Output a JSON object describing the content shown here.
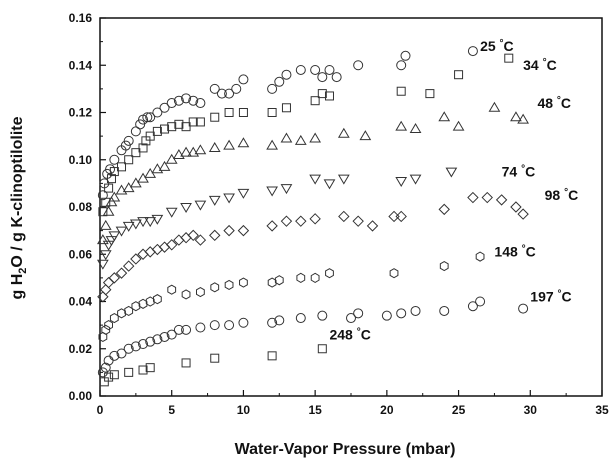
{
  "chart_data": {
    "type": "scatter",
    "title": "",
    "xlabel": "Water-Vapor Pressure (mbar)",
    "ylabel_parts": {
      "pre": "g H",
      "sub": "2",
      "post": "O / g K-clinoptilolite"
    },
    "xlim": [
      0,
      35
    ],
    "ylim": [
      0,
      0.16
    ],
    "x_ticks": [
      0,
      5,
      10,
      15,
      20,
      25,
      30,
      35
    ],
    "y_ticks": [
      "0.00",
      "0.02",
      "0.04",
      "0.06",
      "0.08",
      "0.10",
      "0.12",
      "0.14",
      "0.16"
    ],
    "grid": false,
    "series": [
      {
        "name": "25 °C",
        "marker": "circle",
        "label": {
          "text": "25 °C",
          "x": 26.5,
          "y": 0.146
        },
        "points": [
          [
            0.2,
            0.085
          ],
          [
            0.3,
            0.09
          ],
          [
            0.5,
            0.094
          ],
          [
            0.7,
            0.096
          ],
          [
            1,
            0.1
          ],
          [
            1.5,
            0.104
          ],
          [
            1.8,
            0.106
          ],
          [
            2,
            0.108
          ],
          [
            2.5,
            0.112
          ],
          [
            2.8,
            0.115
          ],
          [
            3,
            0.117
          ],
          [
            3.3,
            0.118
          ],
          [
            3.5,
            0.118
          ],
          [
            4,
            0.12
          ],
          [
            4.5,
            0.122
          ],
          [
            5,
            0.124
          ],
          [
            5.5,
            0.125
          ],
          [
            6,
            0.126
          ],
          [
            6.5,
            0.125
          ],
          [
            7,
            0.124
          ],
          [
            8,
            0.13
          ],
          [
            8.5,
            0.128
          ],
          [
            9,
            0.128
          ],
          [
            9.5,
            0.13
          ],
          [
            10,
            0.134
          ],
          [
            12,
            0.13
          ],
          [
            12.5,
            0.133
          ],
          [
            13,
            0.136
          ],
          [
            14,
            0.138
          ],
          [
            15,
            0.138
          ],
          [
            15.5,
            0.135
          ],
          [
            16,
            0.138
          ],
          [
            16.5,
            0.135
          ],
          [
            18,
            0.14
          ],
          [
            21,
            0.14
          ],
          [
            21.3,
            0.144
          ],
          [
            26,
            0.146
          ]
        ]
      },
      {
        "name": "34 °C",
        "marker": "square",
        "label": {
          "text": "34 °C",
          "x": 29.5,
          "y": 0.138
        },
        "points": [
          [
            0.2,
            0.078
          ],
          [
            0.4,
            0.082
          ],
          [
            0.6,
            0.088
          ],
          [
            0.8,
            0.092
          ],
          [
            1,
            0.095
          ],
          [
            1.5,
            0.097
          ],
          [
            2,
            0.1
          ],
          [
            2.5,
            0.103
          ],
          [
            3,
            0.105
          ],
          [
            3.2,
            0.108
          ],
          [
            3.5,
            0.11
          ],
          [
            4,
            0.112
          ],
          [
            4.5,
            0.113
          ],
          [
            5,
            0.114
          ],
          [
            5.5,
            0.115
          ],
          [
            6,
            0.114
          ],
          [
            6.5,
            0.116
          ],
          [
            7,
            0.116
          ],
          [
            8,
            0.118
          ],
          [
            9,
            0.12
          ],
          [
            10,
            0.12
          ],
          [
            12,
            0.12
          ],
          [
            13,
            0.122
          ],
          [
            15,
            0.125
          ],
          [
            15.5,
            0.128
          ],
          [
            16,
            0.127
          ],
          [
            21,
            0.129
          ],
          [
            23,
            0.128
          ],
          [
            25,
            0.136
          ],
          [
            28.5,
            0.143
          ]
        ]
      },
      {
        "name": "48 °C",
        "marker": "triangle-up",
        "label": {
          "text": "48 °C",
          "x": 30.5,
          "y": 0.122
        },
        "points": [
          [
            0.2,
            0.066
          ],
          [
            0.4,
            0.072
          ],
          [
            0.6,
            0.078
          ],
          [
            0.8,
            0.082
          ],
          [
            1,
            0.084
          ],
          [
            1.5,
            0.087
          ],
          [
            2,
            0.088
          ],
          [
            2.5,
            0.09
          ],
          [
            3,
            0.092
          ],
          [
            3.5,
            0.094
          ],
          [
            4,
            0.096
          ],
          [
            4.5,
            0.097
          ],
          [
            5,
            0.1
          ],
          [
            5.5,
            0.102
          ],
          [
            6,
            0.103
          ],
          [
            6.5,
            0.103
          ],
          [
            7,
            0.104
          ],
          [
            8,
            0.105
          ],
          [
            9,
            0.106
          ],
          [
            10,
            0.107
          ],
          [
            12,
            0.106
          ],
          [
            13,
            0.109
          ],
          [
            14,
            0.108
          ],
          [
            15,
            0.109
          ],
          [
            17,
            0.111
          ],
          [
            18.5,
            0.11
          ],
          [
            21,
            0.114
          ],
          [
            22,
            0.113
          ],
          [
            24,
            0.118
          ],
          [
            25,
            0.114
          ],
          [
            27.5,
            0.122
          ],
          [
            29,
            0.118
          ],
          [
            29.5,
            0.117
          ]
        ]
      },
      {
        "name": "74 °C",
        "marker": "triangle-down",
        "label": {
          "text": "74 °C",
          "x": 28,
          "y": 0.093
        },
        "points": [
          [
            0.2,
            0.056
          ],
          [
            0.4,
            0.06
          ],
          [
            0.6,
            0.064
          ],
          [
            0.8,
            0.066
          ],
          [
            1,
            0.068
          ],
          [
            1.5,
            0.07
          ],
          [
            2,
            0.072
          ],
          [
            2.5,
            0.073
          ],
          [
            3,
            0.074
          ],
          [
            3.5,
            0.074
          ],
          [
            4,
            0.075
          ],
          [
            5,
            0.078
          ],
          [
            6,
            0.08
          ],
          [
            7,
            0.081
          ],
          [
            8,
            0.083
          ],
          [
            9,
            0.084
          ],
          [
            10,
            0.086
          ],
          [
            12,
            0.087
          ],
          [
            13,
            0.088
          ],
          [
            15,
            0.092
          ],
          [
            16,
            0.09
          ],
          [
            17,
            0.092
          ],
          [
            21,
            0.091
          ],
          [
            22,
            0.092
          ],
          [
            24.5,
            0.095
          ]
        ]
      },
      {
        "name": "98 °C",
        "marker": "diamond",
        "label": {
          "text": "98 °C",
          "x": 31,
          "y": 0.083
        },
        "points": [
          [
            0.2,
            0.042
          ],
          [
            0.4,
            0.045
          ],
          [
            0.6,
            0.048
          ],
          [
            1,
            0.05
          ],
          [
            1.5,
            0.052
          ],
          [
            2,
            0.055
          ],
          [
            2.5,
            0.058
          ],
          [
            3,
            0.06
          ],
          [
            3.5,
            0.061
          ],
          [
            4,
            0.062
          ],
          [
            4.5,
            0.063
          ],
          [
            5,
            0.064
          ],
          [
            5.5,
            0.066
          ],
          [
            6,
            0.067
          ],
          [
            6.5,
            0.068
          ],
          [
            7,
            0.066
          ],
          [
            8,
            0.068
          ],
          [
            9,
            0.07
          ],
          [
            10,
            0.07
          ],
          [
            12,
            0.072
          ],
          [
            13,
            0.074
          ],
          [
            14,
            0.074
          ],
          [
            15,
            0.075
          ],
          [
            17,
            0.076
          ],
          [
            18,
            0.074
          ],
          [
            19,
            0.072
          ],
          [
            20.5,
            0.076
          ],
          [
            21,
            0.076
          ],
          [
            24,
            0.079
          ],
          [
            26,
            0.084
          ],
          [
            27,
            0.084
          ],
          [
            28,
            0.083
          ],
          [
            29,
            0.08
          ],
          [
            29.5,
            0.077
          ]
        ]
      },
      {
        "name": "148 °C",
        "marker": "hexagon",
        "label": {
          "text": "148 °C",
          "x": 27.5,
          "y": 0.059
        },
        "points": [
          [
            0.2,
            0.025
          ],
          [
            0.4,
            0.028
          ],
          [
            0.6,
            0.03
          ],
          [
            1,
            0.033
          ],
          [
            1.5,
            0.035
          ],
          [
            2,
            0.036
          ],
          [
            2.5,
            0.038
          ],
          [
            3,
            0.039
          ],
          [
            3.5,
            0.04
          ],
          [
            4,
            0.041
          ],
          [
            5,
            0.045
          ],
          [
            6,
            0.043
          ],
          [
            7,
            0.044
          ],
          [
            8,
            0.046
          ],
          [
            9,
            0.047
          ],
          [
            10,
            0.048
          ],
          [
            12,
            0.048
          ],
          [
            12.5,
            0.049
          ],
          [
            14,
            0.05
          ],
          [
            15,
            0.05
          ],
          [
            16,
            0.052
          ],
          [
            20.5,
            0.052
          ],
          [
            24,
            0.055
          ],
          [
            26.5,
            0.059
          ]
        ]
      },
      {
        "name": "197 °C",
        "marker": "circle",
        "label": {
          "text": "197 °C",
          "x": 30,
          "y": 0.04
        },
        "points": [
          [
            0.2,
            0.01
          ],
          [
            0.4,
            0.012
          ],
          [
            0.6,
            0.015
          ],
          [
            1,
            0.017
          ],
          [
            1.5,
            0.018
          ],
          [
            2,
            0.02
          ],
          [
            2.5,
            0.021
          ],
          [
            3,
            0.022
          ],
          [
            3.5,
            0.023
          ],
          [
            4,
            0.024
          ],
          [
            4.5,
            0.025
          ],
          [
            5,
            0.026
          ],
          [
            5.5,
            0.028
          ],
          [
            6,
            0.028
          ],
          [
            7,
            0.029
          ],
          [
            8,
            0.03
          ],
          [
            9,
            0.03
          ],
          [
            10,
            0.031
          ],
          [
            12,
            0.031
          ],
          [
            12.5,
            0.032
          ],
          [
            14,
            0.033
          ],
          [
            15.5,
            0.034
          ],
          [
            17.5,
            0.033
          ],
          [
            18,
            0.035
          ],
          [
            20,
            0.034
          ],
          [
            21,
            0.035
          ],
          [
            22,
            0.036
          ],
          [
            24,
            0.036
          ],
          [
            26,
            0.038
          ],
          [
            26.5,
            0.04
          ],
          [
            29.5,
            0.037
          ]
        ]
      },
      {
        "name": "248 °C",
        "marker": "square",
        "label": {
          "text": "248 °C",
          "x": 16,
          "y": 0.024
        },
        "points": [
          [
            0.3,
            0.006
          ],
          [
            0.6,
            0.008
          ],
          [
            1,
            0.009
          ],
          [
            2,
            0.01
          ],
          [
            3,
            0.011
          ],
          [
            3.5,
            0.012
          ],
          [
            6,
            0.014
          ],
          [
            8,
            0.016
          ],
          [
            12,
            0.017
          ],
          [
            15.5,
            0.02
          ]
        ]
      }
    ]
  }
}
